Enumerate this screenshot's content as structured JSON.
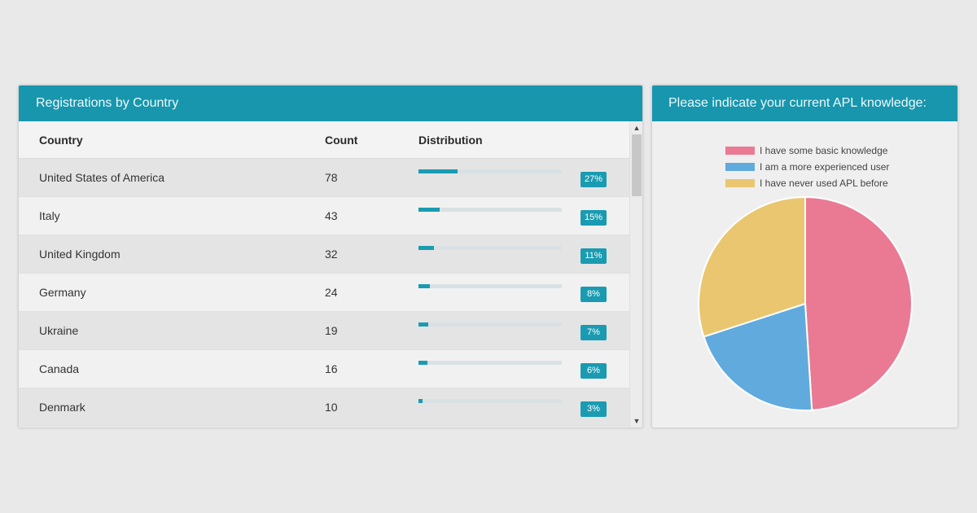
{
  "registrations": {
    "title": "Registrations by Country",
    "columns": [
      "Country",
      "Count",
      "Distribution"
    ],
    "rows": [
      {
        "country": "United States of America",
        "count": "78",
        "pct_label": "27%",
        "pct": 27
      },
      {
        "country": "Italy",
        "count": "43",
        "pct_label": "15%",
        "pct": 15
      },
      {
        "country": "United Kingdom",
        "count": "32",
        "pct_label": "11%",
        "pct": 11
      },
      {
        "country": "Germany",
        "count": "24",
        "pct_label": "8%",
        "pct": 8
      },
      {
        "country": "Ukraine",
        "count": "19",
        "pct_label": "7%",
        "pct": 7
      },
      {
        "country": "Canada",
        "count": "16",
        "pct_label": "6%",
        "pct": 6
      },
      {
        "country": "Denmark",
        "count": "10",
        "pct_label": "3%",
        "pct": 3
      }
    ],
    "scroll_up_icon": "chevron-up-icon",
    "scroll_down_icon": "chevron-down-icon"
  },
  "knowledge": {
    "title": "Please indicate your current APL knowledge:"
  },
  "chart_data": {
    "type": "pie",
    "title": "",
    "slices": [
      {
        "label": "I have some basic knowledge",
        "value": 49,
        "color": "#ea7a93"
      },
      {
        "label": "I am a more experienced user",
        "value": 21,
        "color": "#60aade"
      },
      {
        "label": "I have never used APL before",
        "value": 30,
        "color": "#e9c66f"
      }
    ],
    "legend_position": "top"
  }
}
